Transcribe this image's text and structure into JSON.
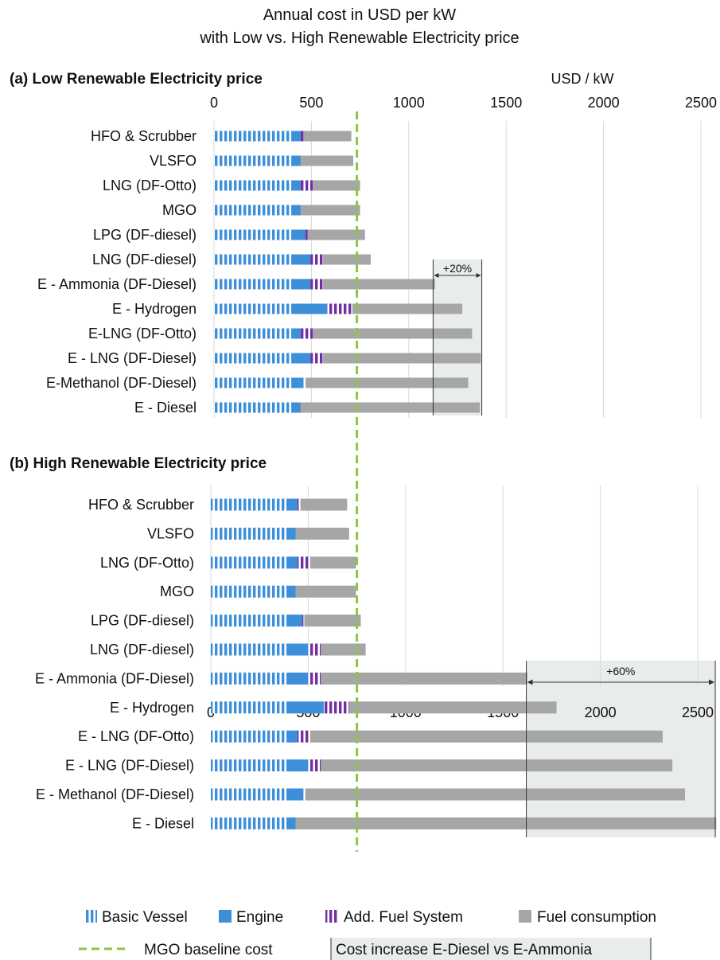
{
  "chart_data": {
    "type": "bar",
    "stacked": true,
    "orientation": "horizontal",
    "title": [
      "Annual cost in USD per kW",
      "with Low vs. High Renewable Electricity price"
    ],
    "unit_label": "USD / kW",
    "xlim": [
      0,
      2600
    ],
    "ticks": [
      "0",
      "500",
      "1000",
      "1500",
      "2000",
      "2500"
    ],
    "grid": true,
    "baseline": {
      "name": "MGO baseline cost",
      "value": 750,
      "color": "#8dc63f"
    },
    "series": [
      {
        "name": "Basic Vessel",
        "color": "#3d8fd9",
        "pattern": "vertical-stripes"
      },
      {
        "name": "Engine",
        "color": "#3d8fd9",
        "pattern": "solid"
      },
      {
        "name": "Add. Fuel System",
        "color": "#7030a0",
        "pattern": "vertical-stripes"
      },
      {
        "name": "Fuel consumption",
        "color": "#a6a6a6",
        "pattern": "solid"
      }
    ],
    "shade_legend": "Cost increase E-Diesel vs E-Ammonia",
    "panels": [
      {
        "title": "(a) Low Renewable Electricity price",
        "categories": [
          "HFO & Scrubber",
          "VLSFO",
          "LNG (DF-Otto)",
          "MGO",
          "LPG (DF-diesel)",
          "LNG (DF-diesel)",
          "E - Ammonia (DF-Diesel)",
          "E - Hydrogen",
          "E-LNG (DF-Otto)",
          "E - LNG (DF-Diesel)",
          "E-Methanol (DF-Diesel)",
          "E - Diesel"
        ],
        "basic_vessel": [
          400,
          400,
          400,
          400,
          400,
          400,
          400,
          400,
          400,
          400,
          400,
          400
        ],
        "engine": [
          45,
          45,
          45,
          45,
          70,
          95,
          95,
          180,
          45,
          95,
          60,
          45
        ],
        "add_fuel_system": [
          15,
          0,
          65,
          0,
          10,
          65,
          65,
          130,
          65,
          65,
          10,
          0
        ],
        "fuel_consumption": [
          245,
          270,
          240,
          305,
          295,
          245,
          575,
          565,
          815,
          810,
          835,
          920
        ],
        "increase_box": {
          "from": 1125,
          "to": 1375,
          "label": "+20%"
        }
      },
      {
        "title": "(b) High Renewable Electricity price",
        "categories": [
          "HFO & Scrubber",
          "VLSFO",
          "LNG (DF-Otto)",
          "MGO",
          "LPG (DF-diesel)",
          "LNG (DF-diesel)",
          "E - Ammonia (DF-Diesel)",
          "E - Hydrogen",
          "E - LNG (DF-Otto)",
          "E - LNG (DF-Diesel)",
          "E - Methanol (DF-Diesel)",
          "E - Diesel"
        ],
        "basic_vessel": [
          390,
          390,
          390,
          390,
          390,
          390,
          390,
          390,
          390,
          390,
          390,
          390
        ],
        "engine": [
          55,
          45,
          55,
          45,
          80,
          110,
          110,
          190,
          55,
          110,
          85,
          45
        ],
        "add_fuel_system": [
          15,
          0,
          65,
          0,
          10,
          65,
          65,
          130,
          65,
          65,
          10,
          0
        ],
        "fuel_consumption": [
          240,
          275,
          235,
          310,
          290,
          230,
          1060,
          1065,
          1810,
          1805,
          1950,
          2160
        ],
        "increase_box": {
          "from": 1620,
          "to": 2590,
          "label": "+60%"
        }
      }
    ]
  }
}
